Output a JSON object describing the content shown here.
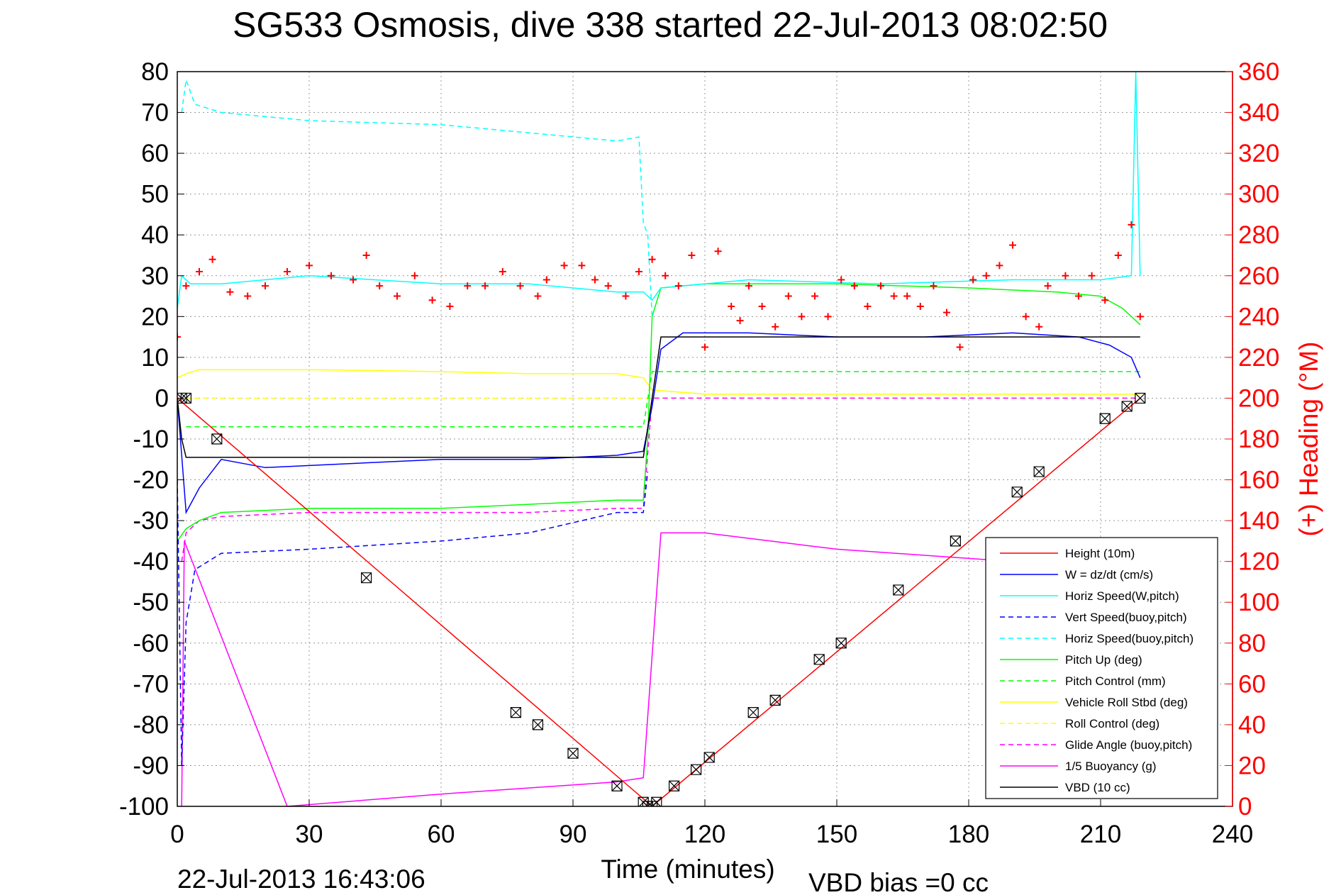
{
  "chart_data": {
    "type": "line",
    "title": "SG533 Osmosis, dive 338 started 22-Jul-2013 08:02:50",
    "xlabel": "Time (minutes)",
    "ylabel_right": "(+) Heading (°M)",
    "footer_left": "22-Jul-2013 16:43:06",
    "footer_right": "VBD bias =0 cc",
    "xlim": [
      0,
      240
    ],
    "ylim": [
      -100,
      80
    ],
    "ylim_right": [
      0,
      360
    ],
    "x_ticks": [
      "0",
      "30",
      "60",
      "90",
      "120",
      "150",
      "180",
      "210",
      "240"
    ],
    "y_ticks": [
      "80",
      "70",
      "60",
      "50",
      "40",
      "30",
      "20",
      "10",
      "0",
      "-10",
      "-20",
      "-30",
      "-40",
      "-50",
      "-60",
      "-70",
      "-80",
      "-90",
      "-100"
    ],
    "y_ticks_right": [
      "360",
      "340",
      "320",
      "300",
      "280",
      "260",
      "240",
      "220",
      "200",
      "180",
      "160",
      "140",
      "120",
      "100",
      "80",
      "60",
      "40",
      "20",
      "0"
    ],
    "grid": true,
    "legend_position": "bottom-right",
    "colors": {
      "red": "#ff0000",
      "blue": "#0000ff",
      "cyan": "#00ffff",
      "green": "#00ff00",
      "yellow": "#ffff00",
      "magenta": "#ff00ff",
      "black": "#000000"
    },
    "series": [
      {
        "name": "Height (10m)",
        "color": "#ff0000",
        "dash": false,
        "x": [
          0,
          108,
          219
        ],
        "y": [
          0,
          -100,
          0
        ]
      },
      {
        "name": "W = dz/dt (cm/s)",
        "color": "#0000ff",
        "dash": false,
        "x": [
          0,
          2,
          5,
          10,
          20,
          40,
          60,
          80,
          100,
          106,
          108,
          110,
          115,
          130,
          150,
          170,
          190,
          205,
          212,
          217,
          219
        ],
        "y": [
          0,
          -28,
          -22,
          -15,
          -17,
          -16,
          -15,
          -15,
          -14,
          -13,
          -2,
          12,
          16,
          16,
          15,
          15,
          16,
          15,
          13,
          10,
          5
        ]
      },
      {
        "name": "Horiz Speed(W,pitch)",
        "color": "#00ffff",
        "dash": false,
        "x": [
          0,
          1,
          3,
          10,
          30,
          60,
          80,
          100,
          106,
          108,
          110,
          130,
          160,
          190,
          210,
          217,
          218,
          219
        ],
        "y": [
          22,
          30,
          28,
          28,
          30,
          28,
          28,
          26,
          26,
          24,
          27,
          29,
          28,
          29,
          29,
          30,
          80,
          30
        ]
      },
      {
        "name": "Vert Speed(buoy,pitch)",
        "color": "#0000ff",
        "dash": true,
        "x": [
          0,
          1,
          2,
          4,
          10,
          30,
          60,
          80,
          100,
          106,
          107
        ],
        "y": [
          -20,
          -90,
          -55,
          -42,
          -38,
          -37,
          -35,
          -33,
          -28,
          -28,
          -18
        ]
      },
      {
        "name": "Horiz Speed(buoy,pitch)",
        "color": "#00ffff",
        "dash": true,
        "x": [
          1,
          2,
          4,
          10,
          30,
          60,
          80,
          100,
          105,
          106,
          107,
          108
        ],
        "y": [
          70,
          78,
          72,
          70,
          68,
          67,
          65,
          63,
          64,
          43,
          40,
          20
        ]
      },
      {
        "name": "Pitch Up (deg)",
        "color": "#00ff00",
        "dash": false,
        "x": [
          0,
          2,
          5,
          10,
          30,
          60,
          80,
          100,
          106,
          107,
          108,
          110,
          120,
          150,
          180,
          200,
          210,
          215,
          219
        ],
        "y": [
          -35,
          -32,
          -30,
          -28,
          -27,
          -27,
          -26,
          -25,
          -25,
          -10,
          20,
          27,
          28,
          28,
          27,
          26,
          25,
          22,
          18
        ]
      },
      {
        "name": "Pitch Control (mm)",
        "color": "#00ff00",
        "dash": true,
        "x": [
          2,
          106,
          108,
          219
        ],
        "y": [
          -7,
          -7,
          6.5,
          6.5
        ]
      },
      {
        "name": "Vehicle Roll Stbd (deg)",
        "color": "#ffff00",
        "dash": false,
        "x": [
          0,
          2,
          5,
          30,
          60,
          80,
          100,
          106,
          108,
          120,
          150,
          180,
          200,
          215,
          219
        ],
        "y": [
          5,
          6,
          7,
          7,
          6.5,
          6,
          6,
          5,
          2,
          1,
          1,
          1,
          1,
          1,
          1
        ]
      },
      {
        "name": "Roll Control (deg)",
        "color": "#ffff00",
        "dash": true,
        "x": [
          0,
          2,
          106,
          108,
          219
        ],
        "y": [
          0,
          0,
          0,
          0,
          0
        ]
      },
      {
        "name": "Glide Angle (buoy,pitch)",
        "color": "#ff00ff",
        "dash": true,
        "x": [
          1,
          2,
          5,
          10,
          30,
          60,
          80,
          100,
          106,
          108,
          219
        ],
        "y": [
          -40,
          -33,
          -30,
          -29,
          -28,
          -28,
          -28,
          -27,
          -27,
          0,
          0
        ]
      },
      {
        "name": "1/5 Buoyancy (g)",
        "color": "#ff00ff",
        "dash": false,
        "x": [
          1,
          1.6,
          25,
          60,
          100,
          106,
          110,
          120,
          150,
          190
        ],
        "y": [
          -100,
          -35,
          -100,
          -97,
          -94,
          -93,
          -33,
          -33,
          -37,
          -40
        ]
      },
      {
        "name": "VBD (10 cc)",
        "color": "#000000",
        "dash": false,
        "x": [
          0,
          1,
          2,
          106,
          108,
          110,
          219
        ],
        "y": [
          0,
          -10,
          -14.5,
          -14.5,
          0,
          15,
          15
        ]
      }
    ],
    "heading_series": {
      "marker": "+",
      "color": "#ff0000",
      "x": [
        0,
        2,
        5,
        8,
        12,
        16,
        20,
        25,
        30,
        35,
        40,
        43,
        46,
        50,
        54,
        58,
        62,
        66,
        70,
        74,
        78,
        82,
        84,
        88,
        92,
        95,
        98,
        102,
        105,
        108,
        111,
        114,
        117,
        120,
        123,
        126,
        128,
        130,
        133,
        136,
        139,
        142,
        145,
        148,
        151,
        154,
        157,
        160,
        163,
        166,
        169,
        172,
        175,
        178,
        181,
        184,
        187,
        190,
        193,
        196,
        198,
        202,
        205,
        208,
        211,
        214,
        217,
        219
      ],
      "y": [
        230,
        255,
        262,
        268,
        252,
        250,
        255,
        262,
        265,
        260,
        258,
        270,
        255,
        250,
        260,
        248,
        245,
        255,
        255,
        262,
        255,
        250,
        258,
        265,
        265,
        258,
        255,
        250,
        262,
        268,
        260,
        255,
        270,
        225,
        272,
        245,
        238,
        255,
        245,
        235,
        250,
        240,
        250,
        240,
        258,
        255,
        245,
        255,
        250,
        250,
        245,
        255,
        242,
        225,
        258,
        260,
        265,
        275,
        240,
        235,
        255,
        260,
        250,
        260,
        248,
        270,
        285,
        240
      ]
    },
    "dive_markers": {
      "marker": "box-x",
      "color": "#000000",
      "x": [
        1,
        2,
        9,
        43,
        77,
        82,
        90,
        100,
        106,
        107,
        108,
        109,
        113,
        118,
        121,
        131,
        136,
        146,
        151,
        164,
        177,
        191,
        196,
        211,
        216,
        219
      ],
      "y": [
        0,
        0,
        -10,
        -44,
        -77,
        -80,
        -87,
        -95,
        -99,
        -100,
        -100,
        -99,
        -95,
        -91,
        -88,
        -77,
        -74,
        -64,
        -60,
        -47,
        -35,
        -23,
        -18,
        -5,
        -2,
        0
      ]
    }
  }
}
